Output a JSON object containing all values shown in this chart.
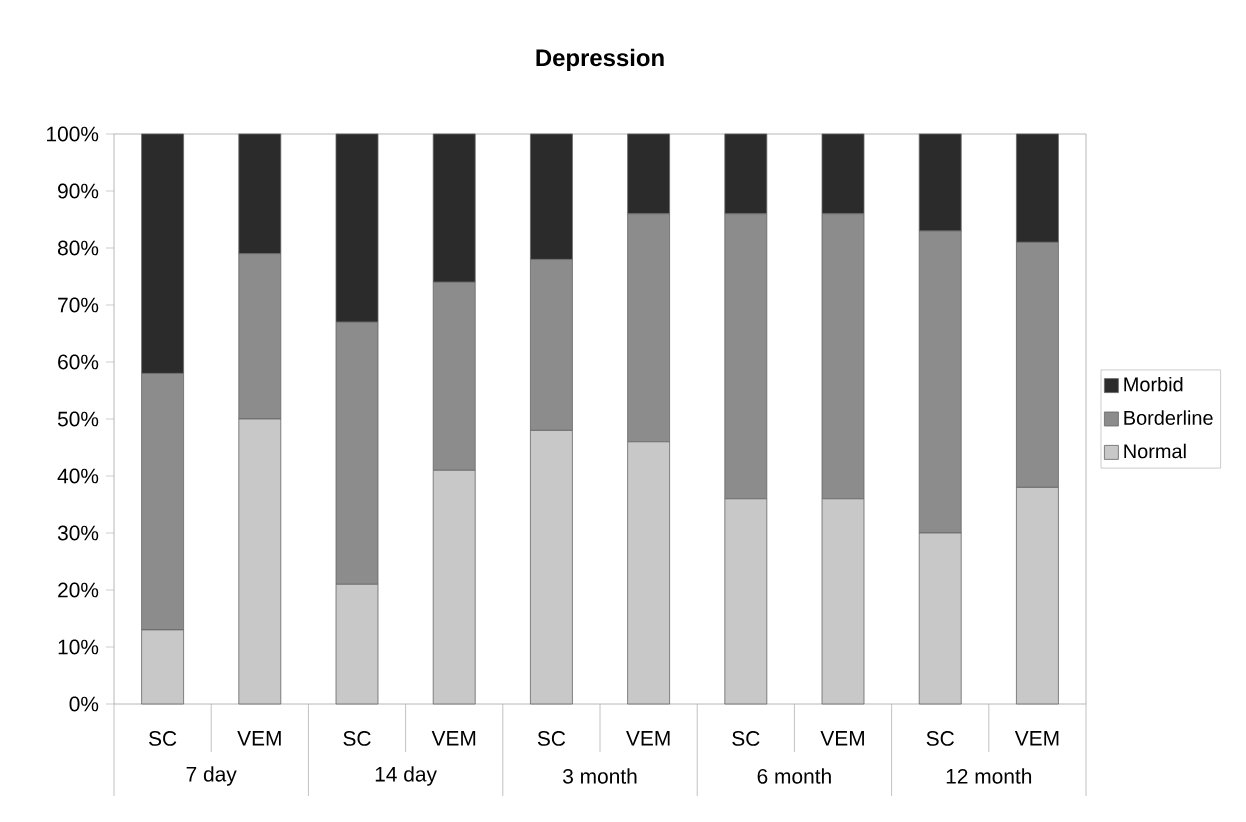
{
  "chart_data": {
    "type": "bar",
    "title": "Depression",
    "stacked": true,
    "legend": "right",
    "categories": [
      "SC",
      "VEM",
      "SC",
      "VEM",
      "SC",
      "VEM",
      "SC",
      "VEM",
      "SC",
      "VEM"
    ],
    "annotations": [
      "7 day",
      "14 day",
      "3 month",
      "6 month",
      "12 month"
    ],
    "series": [
      {
        "name": "Normal",
        "color": "#c8c8c8",
        "values": [
          13,
          50,
          21,
          41,
          48,
          46,
          36,
          36,
          30,
          38
        ]
      },
      {
        "name": "Borderline",
        "color": "#8c8c8c",
        "values": [
          45,
          29,
          46,
          33,
          30,
          40,
          50,
          50,
          53,
          43
        ]
      },
      {
        "name": "Morbid",
        "color": "#2b2b2b",
        "values": [
          42,
          21,
          33,
          26,
          22,
          14,
          14,
          14,
          17,
          19
        ]
      }
    ],
    "ylim": [
      0,
      100
    ],
    "yticks": [
      {
        "value": 0,
        "label": "0%"
      },
      {
        "value": 10,
        "label": "10%"
      },
      {
        "value": 20,
        "label": "20%"
      },
      {
        "value": 30,
        "label": "30%"
      },
      {
        "value": 40,
        "label": "40%"
      },
      {
        "value": 50,
        "label": "50%"
      },
      {
        "value": 60,
        "label": "60%"
      },
      {
        "value": 70,
        "label": "70%"
      },
      {
        "value": 80,
        "label": "80%"
      },
      {
        "value": 90,
        "label": "90%"
      },
      {
        "value": 100,
        "label": "100%"
      }
    ]
  }
}
